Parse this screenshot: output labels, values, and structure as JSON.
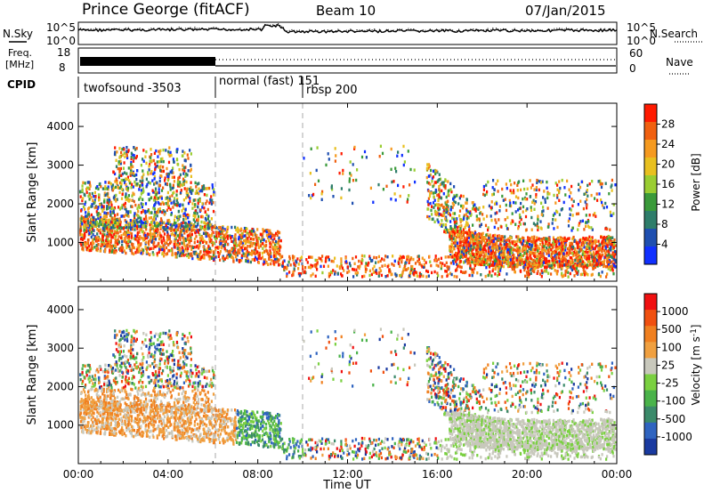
{
  "header": {
    "station": "Prince George (fitACF)",
    "beam": "Beam 10",
    "date": "07/Jan/2015"
  },
  "noise_panel": {
    "left_label": "N.Sky",
    "right_label": "N.Search",
    "tick_top": "10^5",
    "tick_bottom": "10^0",
    "right_tick_top": "10^5",
    "right_tick_bottom": "10^0"
  },
  "freq_panel": {
    "left_label": "Freq.",
    "left_unit": "[MHz]",
    "right_label": "Nave",
    "left_ticks": [
      "18",
      "8"
    ],
    "right_ticks": [
      "60",
      "0"
    ]
  },
  "cpid_panel": {
    "label": "CPID",
    "segments": [
      "twofsound -3503",
      "normal (fast) 151",
      "rbsp 200"
    ]
  },
  "chart_data": [
    {
      "type": "heatmap",
      "name": "Power",
      "ylabel": "Slant Range [km]",
      "y_ticks": [
        "1000",
        "2000",
        "3000",
        "4000"
      ],
      "colorbar_label": "Power [dB]",
      "colorbar_ticks": [
        "4",
        "8",
        "12",
        "16",
        "20",
        "24",
        "28"
      ],
      "colorbar_colors": [
        "#1030ff",
        "#1f4fb0",
        "#2e7d6a",
        "#3a9a3a",
        "#9acd32",
        "#e8c020",
        "#f59a20",
        "#f06010",
        "#ff1a00"
      ]
    },
    {
      "type": "heatmap",
      "name": "Velocity",
      "ylabel": "Slant Range [km]",
      "y_ticks": [
        "1000",
        "2000",
        "3000",
        "4000"
      ],
      "colorbar_label": "Velocity [m s",
      "colorbar_unit_exp": "-1",
      "colorbar_ticks": [
        "1000",
        "500",
        "100",
        "25",
        "-25",
        "-100",
        "-500",
        "-1000"
      ],
      "colorbar_colors": [
        "#1a3aa0",
        "#2f64c0",
        "#3b8a6a",
        "#4ab34a",
        "#7ad040",
        "#c8c8bc",
        "#f0a040",
        "#f08020",
        "#f05010",
        "#f01010"
      ]
    }
  ],
  "x_axis": {
    "label": "Time UT",
    "ticks": [
      "00:00",
      "04:00",
      "08:00",
      "12:00",
      "16:00",
      "20:00",
      "00:00"
    ]
  },
  "colors": {
    "background": "#ffffff",
    "frame": "#000000",
    "grid_dashed": "#999999"
  }
}
